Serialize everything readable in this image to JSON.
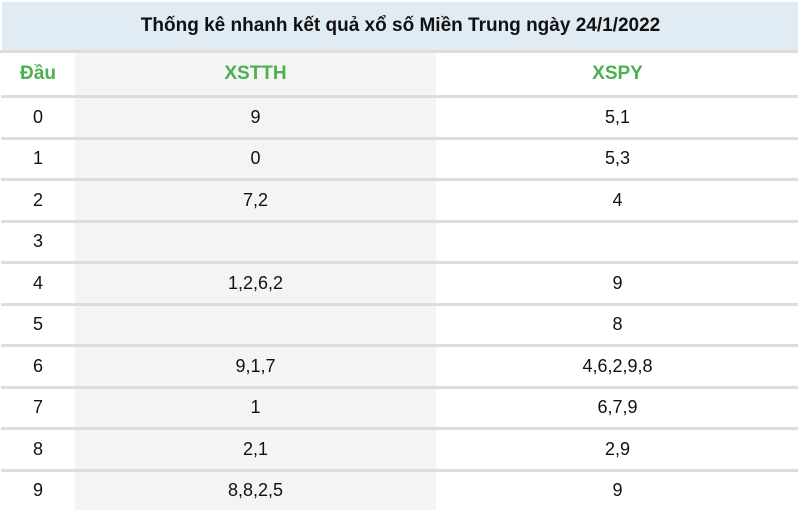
{
  "title": "Thống kê nhanh kết quả xổ số Miền Trung ngày 24/1/2022",
  "headers": [
    "Đầu",
    "XSTTH",
    "XSPY"
  ],
  "rows": [
    [
      "0",
      "9",
      "5,1"
    ],
    [
      "1",
      "0",
      "5,3"
    ],
    [
      "2",
      "7,2",
      "4"
    ],
    [
      "3",
      "",
      ""
    ],
    [
      "4",
      "1,2,6,2",
      "9"
    ],
    [
      "5",
      "",
      "8"
    ],
    [
      "6",
      "9,1,7",
      "4,6,2,9,8"
    ],
    [
      "7",
      "1",
      "6,7,9"
    ],
    [
      "8",
      "2,1",
      "2,9"
    ],
    [
      "9",
      "8,8,2,5",
      "9"
    ]
  ],
  "colors": {
    "header_text": "#4caf50",
    "title_bg": "#e1ebf3",
    "stripe_bg": "#f4f4f4"
  }
}
